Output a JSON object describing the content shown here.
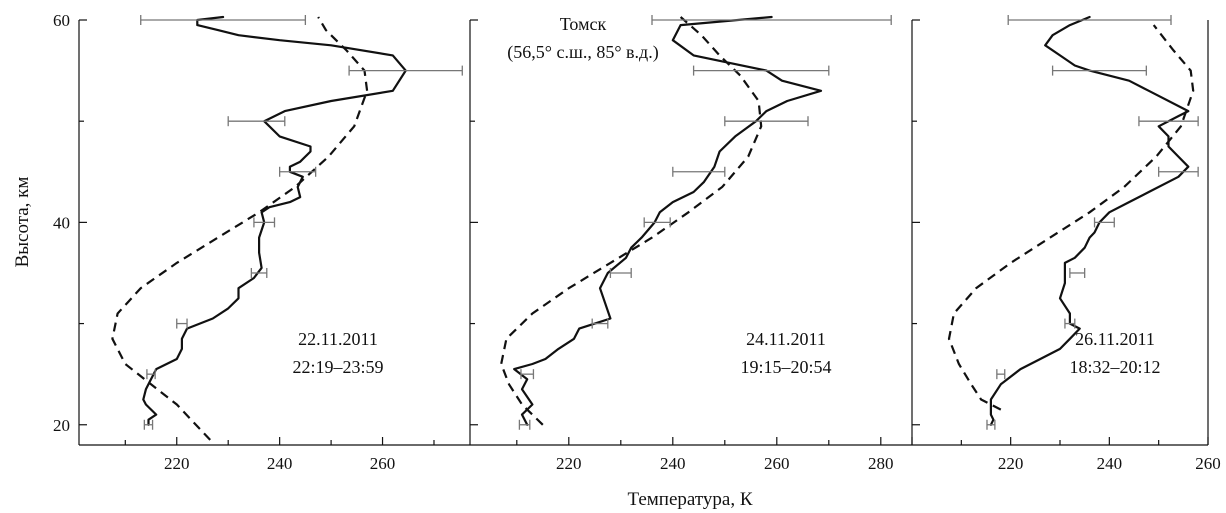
{
  "ylabel": "Высота, км",
  "xlabel": "Температура, К",
  "chart_data": [
    {
      "type": "line",
      "ylabel": "Высота, км",
      "ylim": [
        18,
        60
      ],
      "yticks": [
        20,
        40,
        60
      ],
      "xlim": [
        201,
        277
      ],
      "xticks": [
        220,
        240,
        260
      ],
      "annotation": [
        "22.11.2011",
        "22:19–23:59"
      ],
      "observed": {
        "T": [
          214.5,
          214.5,
          216,
          214,
          213.5,
          214,
          215,
          216,
          220,
          221,
          221,
          222,
          227,
          230,
          232,
          232,
          235,
          236.5,
          236,
          236,
          237,
          236.5,
          238,
          242,
          244,
          243.5,
          244.5,
          242,
          242,
          244,
          246,
          246,
          240,
          237,
          241,
          250,
          262,
          264.5,
          262,
          250,
          240,
          232,
          228,
          224,
          224,
          229
        ],
        "alt": [
          20,
          20.5,
          21,
          22,
          22.5,
          23.5,
          24.5,
          25.5,
          26.5,
          27.5,
          28.5,
          29.5,
          30.5,
          31.5,
          32.5,
          33.5,
          34.5,
          35.5,
          37,
          38.5,
          40,
          41,
          41.5,
          42,
          42.5,
          43.5,
          44.5,
          45,
          45.5,
          46,
          47,
          47.5,
          48.5,
          50,
          51,
          52,
          53,
          55,
          56.5,
          57.5,
          58,
          58.5,
          59,
          59.5,
          60,
          60.3
        ]
      },
      "model": {
        "T": [
          226.5,
          220,
          215,
          210,
          207.5,
          208.5,
          213,
          220,
          228,
          236,
          243,
          249.5,
          254.5,
          257,
          256.5,
          253,
          249,
          247.5
        ],
        "alt": [
          18.5,
          22,
          24,
          26,
          28.5,
          31,
          33.5,
          36,
          38.5,
          41,
          43.5,
          46.5,
          49.5,
          53,
          55,
          57,
          59,
          60.3
        ]
      },
      "error_bars": [
        {
          "alt": 60,
          "T": 229,
          "err": 16
        },
        {
          "alt": 55,
          "T": 264.5,
          "err": 11
        },
        {
          "alt": 50,
          "T": 235.5,
          "err": 5.5
        },
        {
          "alt": 45,
          "T": 243.5,
          "err": 3.5
        },
        {
          "alt": 40,
          "T": 237,
          "err": 2
        },
        {
          "alt": 35,
          "T": 236,
          "err": 1.5
        },
        {
          "alt": 30,
          "T": 221,
          "err": 1
        },
        {
          "alt": 25,
          "T": 215,
          "err": 0.8
        },
        {
          "alt": 20,
          "T": 214.5,
          "err": 0.8
        }
      ]
    },
    {
      "type": "line",
      "ylim": [
        18,
        60
      ],
      "xlim": [
        201,
        286
      ],
      "xticks": [
        220,
        240,
        260,
        280
      ],
      "annotation": [
        "24.11.2011",
        "19:15–20:54"
      ],
      "title": [
        "Томск",
        "(56,5° с.ш., 85° в.д.)"
      ],
      "observed": {
        "T": [
          212,
          211,
          213,
          211,
          212,
          209.5,
          213,
          215.5,
          218,
          221,
          222,
          225,
          228,
          227,
          226,
          227.5,
          231,
          232,
          234,
          236.5,
          237.5,
          240,
          244,
          246,
          248,
          249,
          252,
          256,
          258,
          262,
          268.5,
          261,
          258,
          244,
          240,
          241.5,
          259
        ],
        "alt": [
          20,
          21,
          22,
          23.5,
          24.5,
          25.5,
          26,
          26.5,
          27.5,
          28.5,
          29.5,
          30,
          30.5,
          32,
          33.5,
          35,
          36.5,
          37.5,
          38.5,
          40,
          41,
          42,
          43,
          44,
          45.5,
          47,
          48.5,
          50,
          51,
          52,
          53,
          54,
          55,
          56.5,
          58,
          59.5,
          60.3
        ]
      },
      "model": {
        "T": [
          215,
          211,
          208.5,
          207,
          208,
          213,
          220,
          228,
          236,
          243,
          249.5,
          254.5,
          257,
          256.5,
          253,
          249,
          245.5,
          241.5
        ],
        "alt": [
          20,
          22,
          24,
          26,
          28.5,
          31,
          33.5,
          36,
          38.5,
          41,
          43.5,
          46.5,
          49.5,
          52,
          54.5,
          56.5,
          58.5,
          60.3
        ]
      },
      "error_bars": [
        {
          "alt": 60,
          "T": 259,
          "err": 23
        },
        {
          "alt": 55,
          "T": 257,
          "err": 13
        },
        {
          "alt": 50,
          "T": 258,
          "err": 8
        },
        {
          "alt": 45,
          "T": 245,
          "err": 5
        },
        {
          "alt": 40,
          "T": 237,
          "err": 2.5
        },
        {
          "alt": 35,
          "T": 230,
          "err": 2
        },
        {
          "alt": 30,
          "T": 226,
          "err": 1.5
        },
        {
          "alt": 25,
          "T": 212,
          "err": 1.2
        },
        {
          "alt": 20,
          "T": 211.5,
          "err": 1
        }
      ]
    },
    {
      "type": "line",
      "ylim": [
        18,
        60
      ],
      "xlim": [
        200,
        260
      ],
      "xticks": [
        220,
        240,
        260
      ],
      "annotation": [
        "26.11.2011",
        "18:32–20:12"
      ],
      "observed": {
        "T": [
          216,
          216.5,
          216,
          216,
          218,
          222,
          226,
          230,
          232,
          234,
          232,
          232,
          230,
          231,
          231,
          231,
          233,
          235,
          236,
          237,
          238,
          240,
          244,
          248,
          254,
          256,
          254,
          252,
          252,
          250,
          254,
          256,
          248,
          244,
          236,
          233,
          230,
          227,
          228.5,
          232,
          236
        ],
        "alt": [
          20,
          20.5,
          21,
          22.5,
          24,
          25.5,
          26.5,
          27.5,
          28.5,
          29.5,
          30,
          31,
          32.5,
          34,
          35,
          36,
          36.5,
          37.5,
          38.5,
          39,
          40,
          41,
          42,
          43,
          44.5,
          45.5,
          46.5,
          47.5,
          48.5,
          49.5,
          50.5,
          51,
          53,
          54,
          55,
          55.5,
          56.5,
          57.5,
          58.5,
          59.5,
          60.3
        ]
      },
      "model": {
        "T": [
          218,
          214,
          212,
          209.5,
          207.5,
          208.5,
          213,
          220,
          228,
          236,
          243,
          249.5,
          254.5,
          257,
          256.5,
          253,
          249
        ],
        "alt": [
          21.5,
          22.5,
          24,
          26,
          28.5,
          31,
          33.5,
          36,
          38.5,
          41,
          43.5,
          46.5,
          49.5,
          53,
          55,
          57,
          59.5
        ]
      },
      "error_bars": [
        {
          "alt": 60,
          "T": 236,
          "err": 16.5
        },
        {
          "alt": 55,
          "T": 238,
          "err": 9.5
        },
        {
          "alt": 50,
          "T": 252,
          "err": 6
        },
        {
          "alt": 45,
          "T": 254,
          "err": 4
        },
        {
          "alt": 40,
          "T": 239,
          "err": 2
        },
        {
          "alt": 35,
          "T": 233.5,
          "err": 1.5
        },
        {
          "alt": 30,
          "T": 232,
          "err": 1
        },
        {
          "alt": 25,
          "T": 218,
          "err": 0.8
        },
        {
          "alt": 20,
          "T": 216,
          "err": 0.8
        }
      ]
    }
  ]
}
